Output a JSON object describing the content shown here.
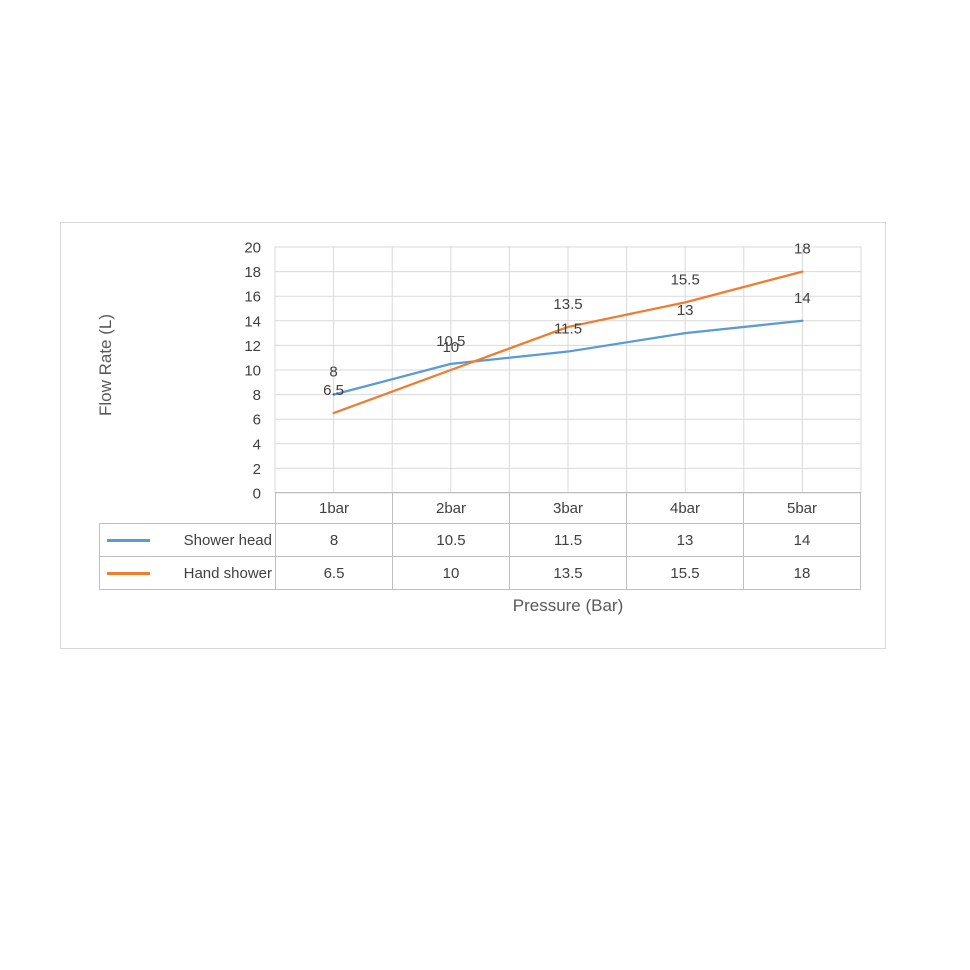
{
  "chart_data": {
    "type": "line",
    "title": "",
    "categories": [
      "1bar",
      "2bar",
      "3bar",
      "4bar",
      "5bar"
    ],
    "series": [
      {
        "name": "Shower head",
        "values": [
          8,
          10.5,
          11.5,
          13,
          14
        ],
        "color": "#5B9BD5"
      },
      {
        "name": "Hand shower",
        "values": [
          6.5,
          10,
          13.5,
          15.5,
          18
        ],
        "color": "#ED7D31"
      }
    ],
    "xlabel": "Pressure (Bar)",
    "ylabel": "Flow Rate (L)",
    "ylim": [
      0,
      20
    ],
    "ytick_step": 2,
    "yticks": [
      0,
      2,
      4,
      6,
      8,
      10,
      12,
      14,
      16,
      18,
      20
    ],
    "grid": true,
    "data_labels": true,
    "legend_position": "data-table"
  },
  "colors": {
    "gridline": "#D9D9D9",
    "table_border": "#BFBFBF",
    "tick_text": "#404040",
    "data_label_text": "#404040",
    "axis_title_text": "#595959",
    "frame_border": "#D9D9D9"
  }
}
